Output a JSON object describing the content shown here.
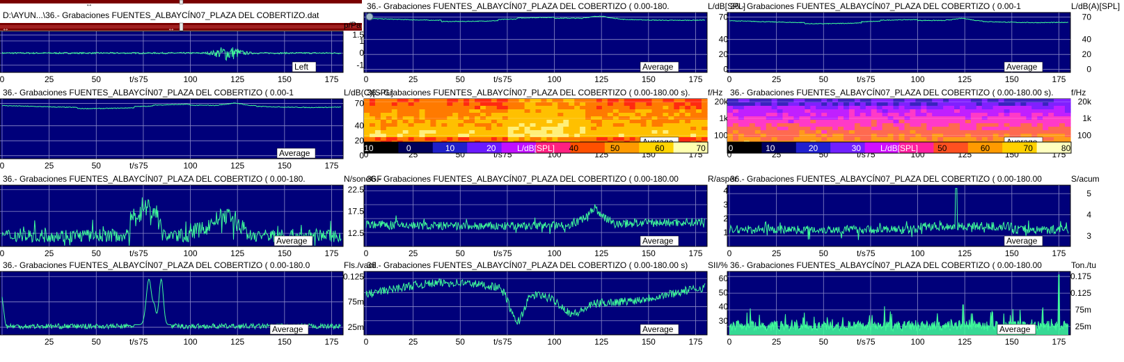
{
  "file_bar": {
    "path": "D:\\AYUN...\\36.- Grabaciones FUENTES_ALBAYCÍN07_PLAZA DEL COBERTIZO.dat",
    "arrow_glyph": "↔"
  },
  "colors": {
    "plot_bg": "#00007a",
    "trace": "#40ff9a",
    "grid": "#8c8cc8",
    "scrollbar": "#7a0000",
    "marker": "#ffffff"
  },
  "chart_data": [
    {
      "id": "waveform",
      "type": "line",
      "title": "",
      "ylabel": "p/Pa",
      "xlabel": "t/s",
      "badge": "Left",
      "xlim": [
        0,
        180
      ],
      "ylim": [
        -1.6,
        1.8
      ],
      "xticks": [
        0,
        25,
        50,
        75,
        100,
        125,
        150,
        175
      ],
      "yticks": [
        {
          "v": 1.5,
          "l": "1.5"
        },
        {
          "v": 1,
          "l": "1"
        },
        {
          "v": 0,
          "l": "0"
        },
        {
          "v": -1,
          "l": "-1"
        }
      ],
      "gen": "wave"
    },
    {
      "id": "spl",
      "type": "line",
      "title": "36.- Grabaciones FUENTES_ALBAYCÍN07_PLAZA DEL COBERTIZO ( 0.00-180.",
      "ylabel": "L/dB[SPL]",
      "xlabel": "t/s",
      "badge": "Average",
      "xlim": [
        0,
        180
      ],
      "ylim": [
        -4,
        76
      ],
      "xticks": [
        0,
        25,
        50,
        75,
        100,
        125,
        150,
        175
      ],
      "yticks": [
        {
          "v": 70,
          "l": "70"
        },
        {
          "v": 40,
          "l": "40"
        },
        {
          "v": 20,
          "l": "20"
        },
        {
          "v": 0,
          "l": "0"
        }
      ],
      "gen": "level",
      "base": 67
    },
    {
      "id": "spl_a",
      "type": "line",
      "title": "36.- Grabaciones FUENTES_ALBAYCÍN07_PLAZA DEL COBERTIZO ( 0.00-1",
      "ylabel": "L/dB(A)[SPL]",
      "xlabel": "t/s",
      "badge": "Average",
      "xlim": [
        0,
        180
      ],
      "ylim": [
        -4,
        76
      ],
      "xticks": [
        0,
        25,
        50,
        75,
        100,
        125,
        150,
        175
      ],
      "yticks": [
        {
          "v": 70,
          "l": "70"
        },
        {
          "v": 40,
          "l": "40"
        },
        {
          "v": 20,
          "l": "20"
        },
        {
          "v": 0,
          "l": "0"
        }
      ],
      "gen": "level",
      "base": 64
    },
    {
      "id": "spl_c",
      "type": "line",
      "title": "36.- Grabaciones FUENTES_ALBAYCÍN07_PLAZA DEL COBERTIZO ( 0.00-1",
      "ylabel": "L/dB(C)[SPL]",
      "xlabel": "t/s",
      "badge": "Average",
      "xlim": [
        0,
        180
      ],
      "ylim": [
        -4,
        76
      ],
      "xticks": [
        0,
        25,
        50,
        75,
        100,
        125,
        150,
        175
      ],
      "yticks": [
        {
          "v": 70,
          "l": "70"
        },
        {
          "v": 40,
          "l": "40"
        },
        {
          "v": 20,
          "l": "20"
        },
        {
          "v": 0,
          "l": "0"
        }
      ],
      "gen": "level",
      "base": 66
    },
    {
      "id": "spectrogram",
      "type": "heatmap",
      "title": "36.- Grabaciones FUENTES_ALBAYCÍN07_PLAZA DEL COBERTIZO ( 0.00-180.00 s).",
      "ylabel": "f/Hz",
      "xlabel": "t/s",
      "badge": "Average",
      "xlim": [
        0,
        180
      ],
      "xticks": [
        0,
        25,
        50,
        75,
        100,
        125,
        150,
        175
      ],
      "yticks": [
        {
          "f": 0.06,
          "l": "20k"
        },
        {
          "f": 0.4,
          "l": "1k"
        },
        {
          "f": 0.75,
          "l": "100"
        }
      ],
      "colorbar": {
        "label": "L/dB[SPL]",
        "ticks": [
          "-10",
          "0",
          "10",
          "20",
          "40",
          "50",
          "60",
          "70"
        ]
      },
      "gen": "hot"
    },
    {
      "id": "spectrogram_a",
      "type": "heatmap",
      "title": "36.- Grabaciones FUENTES_ALBAYCÍN07_PLAZA DEL COBERTIZO ( 0.00-180.00 s).",
      "ylabel": "f/Hz",
      "xlabel": "t/s",
      "badge": "Average",
      "xlim": [
        0,
        180
      ],
      "xticks": [
        0,
        25,
        50,
        75,
        100,
        125,
        150,
        175
      ],
      "yticks": [
        {
          "f": 0.06,
          "l": "20k"
        },
        {
          "f": 0.4,
          "l": "1k"
        },
        {
          "f": 0.75,
          "l": "100"
        }
      ],
      "colorbar": {
        "label": "L/dB[SPL]",
        "ticks": [
          "0",
          "10",
          "20",
          "30",
          "50",
          "60",
          "70",
          "80"
        ]
      },
      "gen": "cool"
    },
    {
      "id": "loudness",
      "type": "line",
      "title": "36.- Grabaciones FUENTES_ALBAYCÍN07_PLAZA DEL COBERTIZO ( 0.00-180.",
      "ylabel": "N/soneGF",
      "xlabel": "t/s",
      "badge": "Average",
      "xlim": [
        0,
        180
      ],
      "ylim": [
        9.5,
        23.5
      ],
      "xticks": [
        0,
        25,
        50,
        75,
        100,
        125,
        150,
        175
      ],
      "yticks": [
        {
          "v": 22.5,
          "l": "22.5"
        },
        {
          "v": 17.5,
          "l": "17.5"
        },
        {
          "v": 12.5,
          "l": "12.5"
        }
      ],
      "gen": "noisy",
      "base": 12,
      "amp": 1.5
    },
    {
      "id": "roughness",
      "type": "line",
      "title": "36.- Grabaciones FUENTES_ALBAYCÍN07_PLAZA DEL COBERTIZO ( 0.00-180.00",
      "ylabel": "R/asper",
      "xlabel": "t/s",
      "badge": "Average",
      "xlim": [
        0,
        180
      ],
      "ylim": [
        0,
        4.4
      ],
      "xticks": [
        0,
        25,
        50,
        75,
        100,
        125,
        150,
        175
      ],
      "yticks": [
        {
          "v": 4,
          "l": "4"
        },
        {
          "v": 3,
          "l": "3"
        },
        {
          "v": 2,
          "l": "2"
        },
        {
          "v": 1,
          "l": "1"
        }
      ],
      "gen": "noisy",
      "base": 1.6,
      "amp": 0.3
    },
    {
      "id": "sharpness",
      "type": "line",
      "title": "36.- Grabaciones FUENTES_ALBAYCÍN07_PLAZA DEL COBERTIZO ( 0.00-180.00",
      "ylabel": "S/acum",
      "xlabel": "t/s",
      "badge": "Average",
      "xlim": [
        0,
        180
      ],
      "ylim": [
        2.5,
        5.4
      ],
      "xticks": [
        0,
        25,
        50,
        75,
        100,
        125,
        150,
        175
      ],
      "yticks": [
        {
          "v": 5,
          "l": "5"
        },
        {
          "v": 4,
          "l": "4"
        },
        {
          "v": 3,
          "l": "3"
        }
      ],
      "gen": "noisy",
      "base": 3.3,
      "amp": 0.2
    },
    {
      "id": "fluctuation",
      "type": "line",
      "title": "36.- Grabaciones FUENTES_ALBAYCÍN07_PLAZA DEL COBERTIZO ( 0.00-180.0",
      "ylabel": "Fls./vacil",
      "xlabel": "t/s",
      "badge": "Average",
      "xlim": [
        0,
        180
      ],
      "ylim": [
        0.01,
        0.135
      ],
      "xticks": [
        25,
        50,
        75,
        100,
        125,
        150,
        175
      ],
      "yticks": [
        {
          "v": 0.125,
          "l": "0.125"
        },
        {
          "v": 0.075,
          "l": "75m"
        },
        {
          "v": 0.025,
          "l": "25m"
        }
      ],
      "gen": "fluct"
    },
    {
      "id": "impulsiveness",
      "type": "line",
      "title": "36.- Grabaciones FUENTES_ALBAYCÍN07_PLAZA DEL COBERTIZO ( 0.00-180.00 s)",
      "ylabel": "SII/%",
      "xlabel": "t/s",
      "badge": "Average",
      "xlim": [
        0,
        180
      ],
      "ylim": [
        20,
        65
      ],
      "xticks": [
        0,
        25,
        50,
        75,
        100,
        125,
        150,
        175
      ],
      "yticks": [
        {
          "v": 60,
          "l": "60"
        },
        {
          "v": 50,
          "l": "50"
        },
        {
          "v": 40,
          "l": "40"
        },
        {
          "v": 30,
          "l": "30"
        }
      ],
      "gen": "sii"
    },
    {
      "id": "tonality",
      "type": "line",
      "title": "36.- Grabaciones FUENTES_ALBAYCÍN07_PLAZA DEL COBERTIZO ( 0.00-180.00",
      "ylabel": "Ton./tu",
      "xlabel": "t/s",
      "badge": "Average",
      "xlim": [
        0,
        180
      ],
      "ylim": [
        0,
        0.19
      ],
      "xticks": [
        0,
        25,
        50,
        75,
        100,
        125,
        150,
        175
      ],
      "yticks": [
        {
          "v": 0.175,
          "l": "0.175"
        },
        {
          "v": 0.125,
          "l": "0.125"
        },
        {
          "v": 0.075,
          "l": "75m"
        },
        {
          "v": 0.025,
          "l": "25m"
        }
      ],
      "gen": "spiky"
    }
  ]
}
